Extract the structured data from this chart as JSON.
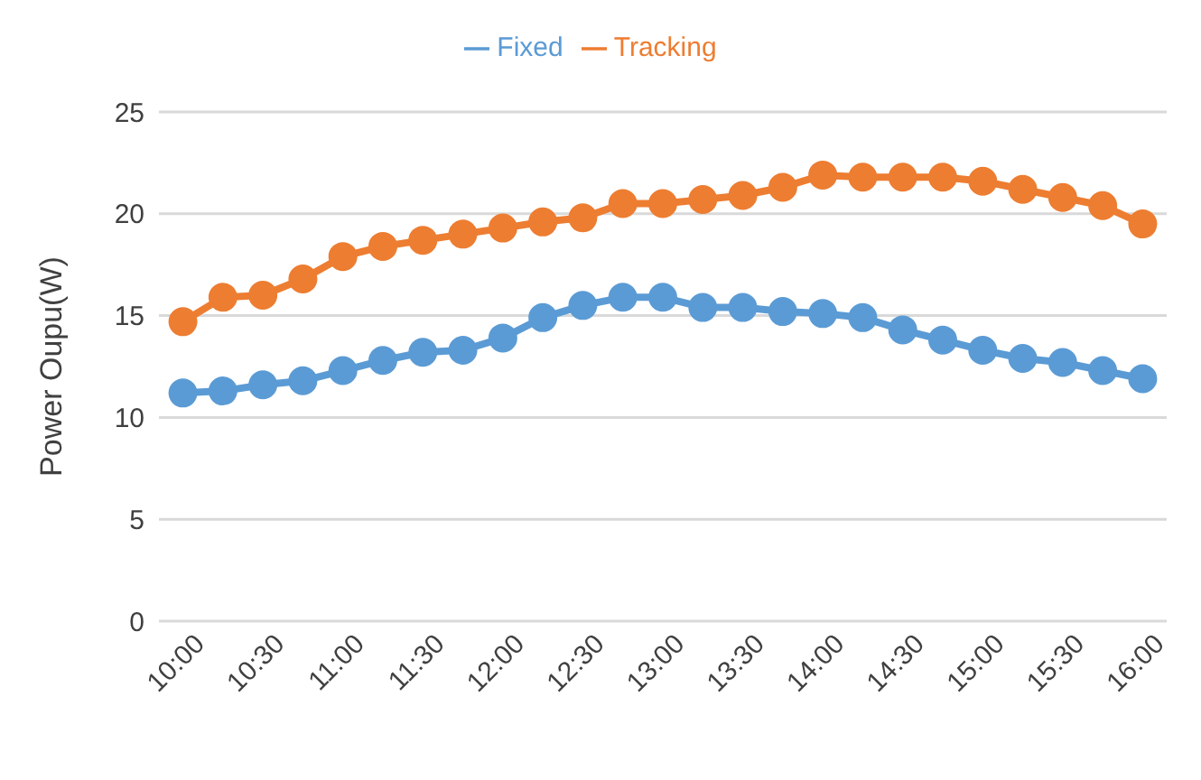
{
  "chart_data": {
    "type": "line",
    "ylabel": "Power Oupu(W)",
    "x": [
      10,
      10.25,
      10.5,
      10.75,
      11,
      11.25,
      11.5,
      11.75,
      12,
      12.25,
      12.5,
      12.75,
      13,
      13.25,
      13.5,
      13.75,
      14,
      14.25,
      14.5,
      14.75,
      15,
      15.25,
      15.5,
      15.75,
      16
    ],
    "xlim": [
      9.85,
      16.15
    ],
    "xticks": [
      {
        "value": 10,
        "label": "10:00"
      },
      {
        "value": 10.5,
        "label": "10:30"
      },
      {
        "value": 11,
        "label": "11:00"
      },
      {
        "value": 11.5,
        "label": "11:30"
      },
      {
        "value": 12,
        "label": "12:00"
      },
      {
        "value": 12.5,
        "label": "12:30"
      },
      {
        "value": 13,
        "label": "13:00"
      },
      {
        "value": 13.5,
        "label": "13:30"
      },
      {
        "value": 14,
        "label": "14:00"
      },
      {
        "value": 14.5,
        "label": "14:30"
      },
      {
        "value": 15,
        "label": "15:00"
      },
      {
        "value": 15.5,
        "label": "15:30"
      },
      {
        "value": 16,
        "label": "16:00"
      }
    ],
    "ylim": [
      0,
      25
    ],
    "yticks": [
      0,
      5,
      10,
      15,
      20,
      25
    ],
    "grid": "y",
    "legend": "top",
    "marker": "circle",
    "line_style": "solid",
    "series": [
      {
        "name": "Fixed",
        "color": "#5b9bd5",
        "values": [
          11.2,
          11.3,
          11.6,
          11.8,
          12.3,
          12.8,
          13.2,
          13.3,
          13.9,
          14.9,
          15.5,
          15.9,
          15.9,
          15.4,
          15.4,
          15.2,
          15.1,
          14.9,
          14.3,
          13.8,
          13.3,
          12.9,
          12.7,
          12.3,
          11.9
        ]
      },
      {
        "name": "Tracking",
        "color": "#ed7d31",
        "values": [
          14.7,
          15.9,
          16.0,
          16.8,
          17.9,
          18.4,
          18.7,
          19.0,
          19.3,
          19.6,
          19.8,
          20.5,
          20.5,
          20.7,
          20.9,
          21.3,
          21.9,
          21.8,
          21.8,
          21.8,
          21.6,
          21.2,
          20.8,
          20.4,
          19.5
        ]
      }
    ]
  }
}
